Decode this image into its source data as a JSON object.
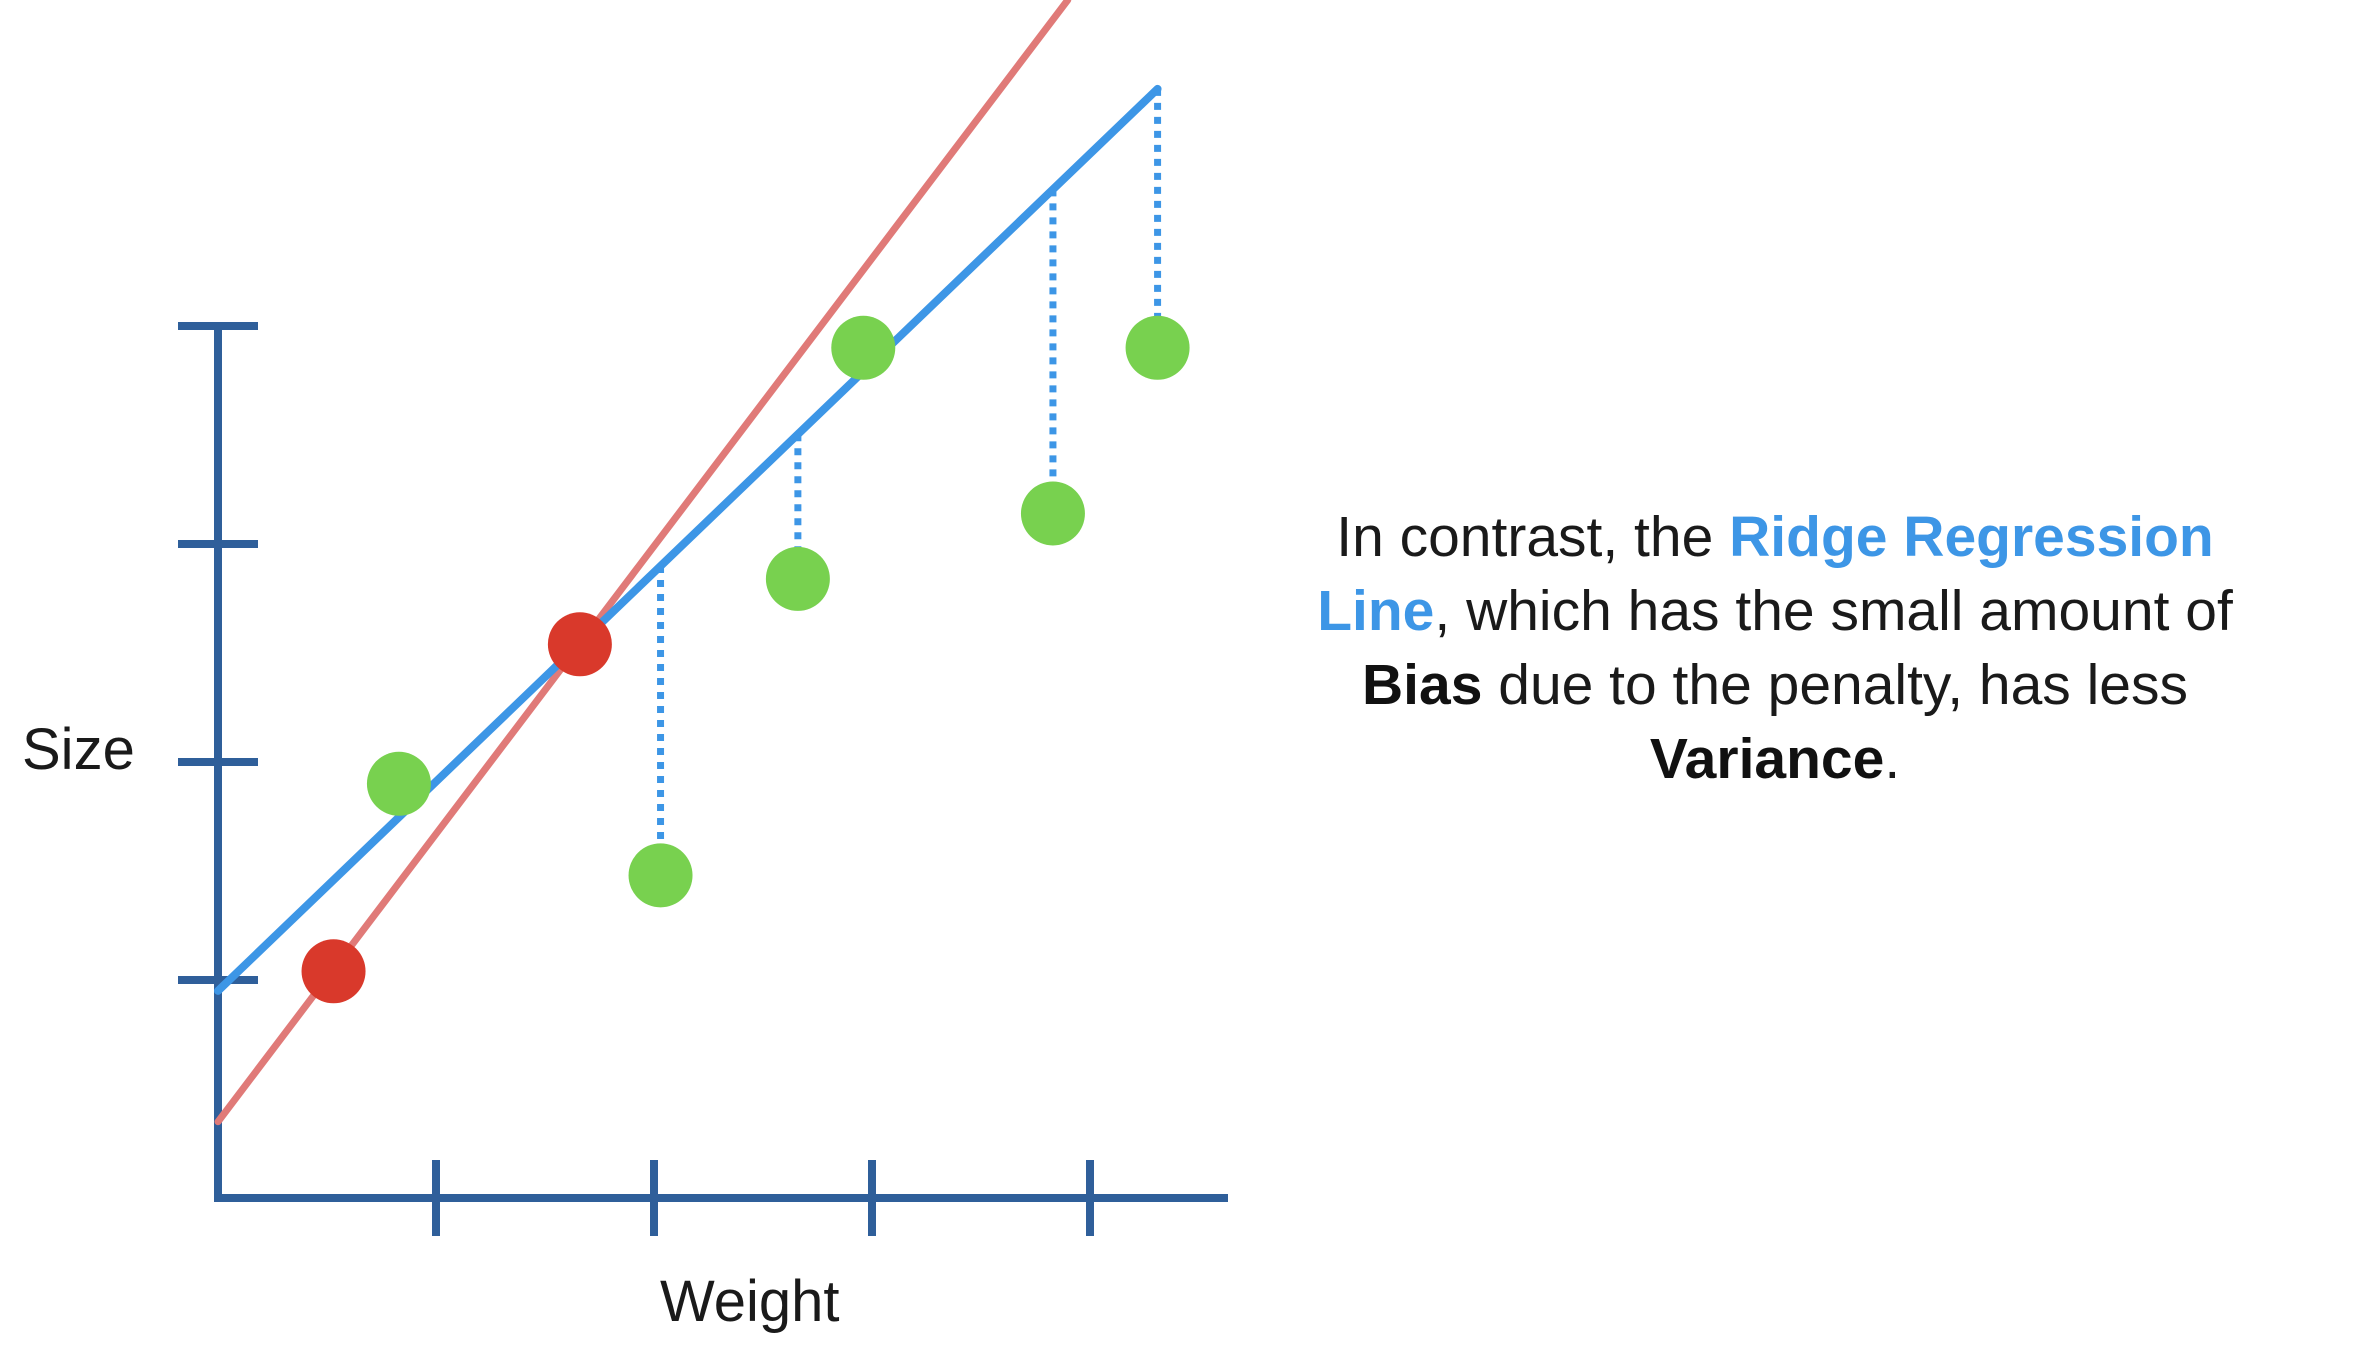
{
  "chart_data": {
    "type": "scatter",
    "xlabel": "Weight",
    "ylabel": "Size",
    "x_ticks": 4,
    "y_ticks": 4,
    "xlim": [
      0,
      4.6
    ],
    "ylim": [
      0,
      4.1
    ],
    "tick_labels_shown": false,
    "grid": false,
    "series": [
      {
        "role": "training-points",
        "color": "#d9392b",
        "points": [
          [
            0.53,
            1.04
          ],
          [
            1.66,
            2.54
          ]
        ]
      },
      {
        "role": "testing-points",
        "color": "#78d14f",
        "points": [
          [
            0.83,
            1.9
          ],
          [
            2.03,
            1.48
          ],
          [
            2.66,
            2.84
          ],
          [
            2.96,
            3.9
          ],
          [
            3.83,
            3.14
          ],
          [
            4.31,
            3.9
          ]
        ]
      }
    ],
    "lines": [
      {
        "role": "least-squares-line",
        "color": "#e07a78",
        "intercept": 0.35,
        "slope": 1.32
      },
      {
        "role": "ridge-regression-line",
        "color": "#3d96e6",
        "intercept": 0.95,
        "slope": 0.96,
        "x_range": [
          0,
          4.31
        ]
      }
    ],
    "residuals": {
      "line": "ridge-regression-line",
      "style": "dotted",
      "color": "#3d96e6",
      "points": "testing-points"
    }
  },
  "caption": {
    "part1": "In contrast, the ",
    "highlight": "Ridge Regression Line",
    "part2": ", which has the small amount of ",
    "bold1": "Bias",
    "part3": " due to the penalty, has less ",
    "bold2": "Variance",
    "part4": "."
  },
  "colors": {
    "axis": "#2f5f9a",
    "least_squares": "#e07a78",
    "ridge": "#3d96e6",
    "train": "#d9392b",
    "test": "#78d14f",
    "text": "#1a1a1a"
  }
}
